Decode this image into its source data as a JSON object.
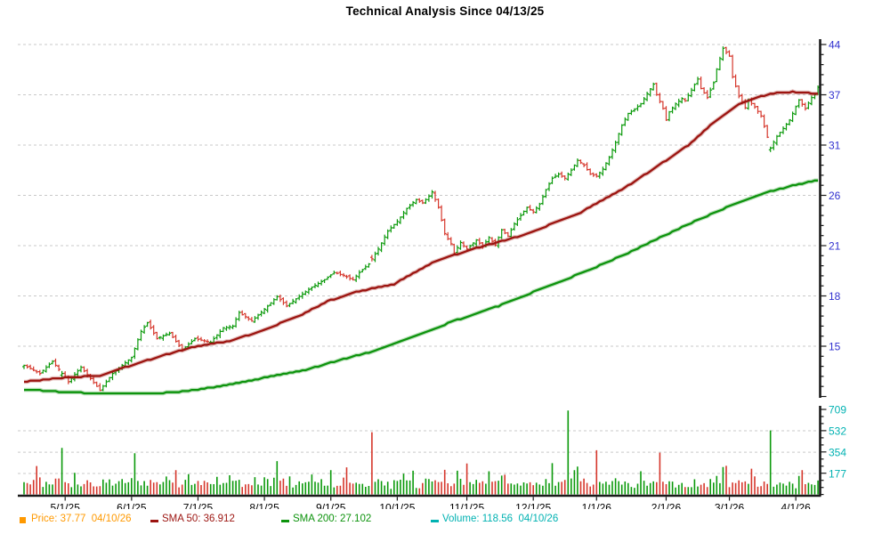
{
  "title": "Technical Analysis Since 04/13/25",
  "legend": {
    "price": "Price: 37.77  04/10/26",
    "sma50": "SMA 50: 36.912",
    "sma200": "SMA 200: 27.102",
    "volume": "Volume: 118.56  04/10/26"
  },
  "colors": {
    "up": "#0b9a0b",
    "down": "#d6372c",
    "sma50": "#9c1410",
    "sma200": "#0d930d",
    "price_axis_text": "#3030cf",
    "volume_axis_text": "#00b2b2",
    "x_axis_text": "#000000",
    "axis_line": "#1a1a1a",
    "gridline": "#c9c9c9",
    "legend_price": "#ff9900",
    "legend_volume": "#00b2b2"
  },
  "chart_data": {
    "type": "ohlc",
    "title": "Technical Analysis Since 04/13/25",
    "days": 252,
    "seed": 7,
    "grid": true,
    "price_scale": "log",
    "price_axis_ticks": [
      44,
      37,
      31,
      26,
      21,
      18,
      15
    ],
    "volume_axis_ticks": [
      709,
      532,
      354,
      177
    ],
    "x_axis_ticks": [
      {
        "label": "5/1/25",
        "i": 13
      },
      {
        "label": "6/1/25",
        "i": 34
      },
      {
        "label": "7/1/25",
        "i": 55
      },
      {
        "label": "8/1/25",
        "i": 76
      },
      {
        "label": "9/1/25",
        "i": 97
      },
      {
        "label": "10/1/25",
        "i": 118
      },
      {
        "label": "11/1/25",
        "i": 140
      },
      {
        "label": "12/1/25",
        "i": 161
      },
      {
        "label": "1/1/26",
        "i": 181
      },
      {
        "label": "2/1/26",
        "i": 203
      },
      {
        "label": "3/1/26",
        "i": 223
      },
      {
        "label": "4/1/26",
        "i": 244
      }
    ],
    "price_last": 37.77,
    "price_last_date": "04/10/26",
    "sma50_last": 36.912,
    "sma200_last": 27.102,
    "volume_last": 118.56,
    "price_close_anchors": [
      [
        0,
        14.0
      ],
      [
        5,
        13.6
      ],
      [
        9,
        14.2
      ],
      [
        14,
        13.2
      ],
      [
        18,
        13.9
      ],
      [
        24,
        12.8
      ],
      [
        28,
        13.6
      ],
      [
        34,
        14.4
      ],
      [
        37,
        15.8
      ],
      [
        39,
        16.3
      ],
      [
        42,
        15.4
      ],
      [
        46,
        15.7
      ],
      [
        50,
        14.8
      ],
      [
        54,
        15.4
      ],
      [
        59,
        15.2
      ],
      [
        63,
        16.0
      ],
      [
        66,
        16.1
      ],
      [
        68,
        16.9
      ],
      [
        72,
        16.4
      ],
      [
        76,
        17.1
      ],
      [
        80,
        17.9
      ],
      [
        83,
        17.3
      ],
      [
        87,
        17.9
      ],
      [
        91,
        18.5
      ],
      [
        95,
        19.0
      ],
      [
        98,
        19.5
      ],
      [
        101,
        19.3
      ],
      [
        104,
        19.0
      ],
      [
        106,
        19.5
      ],
      [
        109,
        20.1
      ],
      [
        112,
        21.2
      ],
      [
        115,
        22.6
      ],
      [
        118,
        23.4
      ],
      [
        121,
        24.5
      ],
      [
        124,
        25.3
      ],
      [
        126,
        25.0
      ],
      [
        128,
        25.6
      ],
      [
        129,
        26.0
      ],
      [
        131,
        24.6
      ],
      [
        133,
        22.4
      ],
      [
        135,
        21.6
      ],
      [
        136,
        20.9
      ],
      [
        138,
        21.7
      ],
      [
        140,
        21.2
      ],
      [
        143,
        21.9
      ],
      [
        145,
        21.4
      ],
      [
        147,
        22.1
      ],
      [
        149,
        21.5
      ],
      [
        151,
        22.7
      ],
      [
        153,
        22.2
      ],
      [
        155,
        23.2
      ],
      [
        157,
        23.9
      ],
      [
        159,
        24.6
      ],
      [
        161,
        24.2
      ],
      [
        163,
        24.9
      ],
      [
        165,
        26.2
      ],
      [
        167,
        27.3
      ],
      [
        169,
        27.7
      ],
      [
        171,
        27.3
      ],
      [
        173,
        28.1
      ],
      [
        175,
        29.1
      ],
      [
        177,
        28.6
      ],
      [
        179,
        27.7
      ],
      [
        181,
        27.5
      ],
      [
        183,
        28.2
      ],
      [
        185,
        29.4
      ],
      [
        187,
        31.0
      ],
      [
        189,
        33.0
      ],
      [
        191,
        34.4
      ],
      [
        193,
        34.9
      ],
      [
        195,
        35.6
      ],
      [
        197,
        36.9
      ],
      [
        199,
        38.2
      ],
      [
        200,
        36.8
      ],
      [
        202,
        35.0
      ],
      [
        203,
        33.6
      ],
      [
        204,
        34.6
      ],
      [
        206,
        35.6
      ],
      [
        208,
        36.3
      ],
      [
        209,
        36.0
      ],
      [
        211,
        37.4
      ],
      [
        213,
        38.9
      ],
      [
        214,
        37.6
      ],
      [
        216,
        36.4
      ],
      [
        218,
        38.4
      ],
      [
        219,
        40.3
      ],
      [
        221,
        43.4
      ],
      [
        223,
        42.2
      ],
      [
        224,
        39.2
      ],
      [
        226,
        36.6
      ],
      [
        228,
        35.1
      ],
      [
        229,
        36.1
      ],
      [
        231,
        35.2
      ],
      [
        233,
        34.1
      ],
      [
        235,
        31.6
      ],
      [
        236,
        30.4
      ],
      [
        238,
        31.7
      ],
      [
        240,
        32.6
      ],
      [
        242,
        33.6
      ],
      [
        243,
        34.4
      ],
      [
        245,
        36.1
      ],
      [
        247,
        35.0
      ],
      [
        249,
        36.4
      ],
      [
        250,
        36.8
      ],
      [
        251,
        37.77
      ]
    ],
    "sma50_anchors": [
      [
        0,
        13.2
      ],
      [
        13,
        13.4
      ],
      [
        24,
        13.5
      ],
      [
        34,
        14.0
      ],
      [
        46,
        14.6
      ],
      [
        55,
        15.0
      ],
      [
        66,
        15.3
      ],
      [
        76,
        15.9
      ],
      [
        87,
        16.7
      ],
      [
        96,
        17.6
      ],
      [
        105,
        18.2
      ],
      [
        117,
        18.7
      ],
      [
        130,
        20.3
      ],
      [
        142,
        21.2
      ],
      [
        158,
        22.3
      ],
      [
        175,
        24.0
      ],
      [
        190,
        26.4
      ],
      [
        199,
        28.2
      ],
      [
        210,
        30.7
      ],
      [
        218,
        33.3
      ],
      [
        226,
        35.6
      ],
      [
        233,
        36.6
      ],
      [
        238,
        37.0
      ],
      [
        243,
        37.15
      ],
      [
        247,
        37.05
      ],
      [
        251,
        36.912
      ]
    ],
    "sma200_anchors": [
      [
        0,
        12.85
      ],
      [
        10,
        12.75
      ],
      [
        20,
        12.68
      ],
      [
        40,
        12.65
      ],
      [
        50,
        12.75
      ],
      [
        60,
        12.95
      ],
      [
        70,
        13.2
      ],
      [
        76,
        13.4
      ],
      [
        90,
        13.8
      ],
      [
        96,
        14.1
      ],
      [
        110,
        14.7
      ],
      [
        123,
        15.5
      ],
      [
        136,
        16.4
      ],
      [
        150,
        17.3
      ],
      [
        160,
        18.1
      ],
      [
        170,
        18.9
      ],
      [
        181,
        19.9
      ],
      [
        190,
        20.8
      ],
      [
        202,
        22.2
      ],
      [
        212,
        23.4
      ],
      [
        223,
        24.7
      ],
      [
        233,
        25.8
      ],
      [
        243,
        26.6
      ],
      [
        251,
        27.102
      ]
    ],
    "volume_spikes": [
      [
        12,
        390,
        "up"
      ],
      [
        35,
        345,
        "up"
      ],
      [
        80,
        280,
        "up"
      ],
      [
        110,
        520,
        "down"
      ],
      [
        140,
        260,
        "down"
      ],
      [
        172,
        700,
        "up"
      ],
      [
        181,
        370,
        "down"
      ],
      [
        201,
        350,
        "down"
      ],
      [
        236,
        535,
        "up"
      ],
      [
        251,
        118.56,
        "up"
      ]
    ],
    "volume_base_range": [
      40,
      230
    ]
  }
}
